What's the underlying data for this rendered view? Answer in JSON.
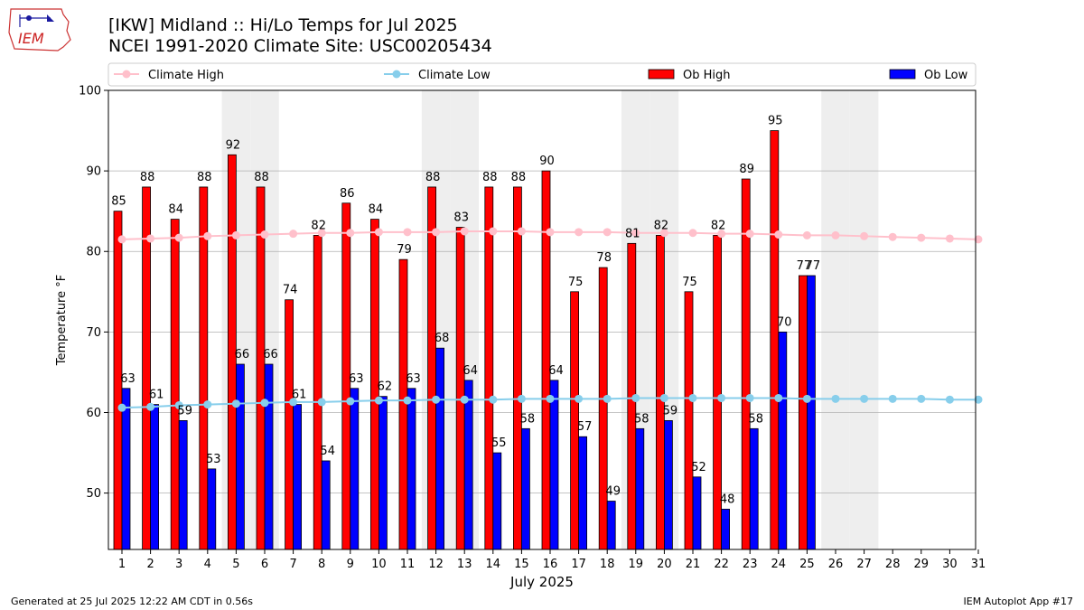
{
  "header": {
    "title_line1": "[IKW] Midland :: Hi/Lo Temps for Jul 2025",
    "title_line2": "NCEI 1991-2020 Climate Site: USC00205434",
    "logo_text": "IEM"
  },
  "footer": {
    "generated": "Generated at 25 Jul 2025 12:22 AM CDT in 0.56s",
    "app": "IEM Autoplot App #17"
  },
  "colors": {
    "climate_high": "#ffc0cb",
    "climate_low": "#87ceeb",
    "ob_high": "#ff0000",
    "ob_low": "#0000ff",
    "weekend_shade": "#eeeeee",
    "grid": "#b0b0b0"
  },
  "chart_data": {
    "type": "bar",
    "xlabel": "July 2025",
    "ylabel": "Temperature °F",
    "ylim": [
      43,
      100
    ],
    "yticks": [
      50,
      60,
      70,
      80,
      90,
      100
    ],
    "grid": "horizontal",
    "legend_placement": "top",
    "days": [
      1,
      2,
      3,
      4,
      5,
      6,
      7,
      8,
      9,
      10,
      11,
      12,
      13,
      14,
      15,
      16,
      17,
      18,
      19,
      20,
      21,
      22,
      23,
      24,
      25,
      26,
      27,
      28,
      29,
      30,
      31
    ],
    "weekend_days": [
      5,
      6,
      12,
      13,
      19,
      20,
      26,
      27
    ],
    "series": [
      {
        "name": "Ob High",
        "kind": "bar",
        "values": [
          85,
          88,
          84,
          88,
          92,
          88,
          74,
          82,
          86,
          84,
          79,
          88,
          83,
          88,
          88,
          90,
          75,
          78,
          81,
          82,
          75,
          82,
          89,
          95,
          77
        ],
        "labels": [
          "85",
          "88",
          "84",
          "88",
          "92",
          "88",
          "74",
          "82",
          "86",
          "84",
          "79",
          "88",
          "83",
          "88",
          "88",
          "90",
          "75",
          "78",
          "81",
          "82",
          "75",
          "82",
          "89",
          "95",
          "77"
        ]
      },
      {
        "name": "Ob Low",
        "kind": "bar",
        "values": [
          63,
          61,
          59,
          53,
          66,
          66,
          61,
          54,
          63,
          62,
          63,
          68,
          64,
          55,
          58,
          64,
          57,
          49,
          58,
          59,
          52,
          48,
          58,
          70,
          77
        ],
        "labels": [
          "63",
          "61",
          "59",
          "53",
          "66",
          "66",
          "61",
          "54",
          "63",
          "62",
          "63",
          "68",
          "64",
          "55",
          "58",
          "64",
          "57",
          "49",
          "58",
          "59",
          "52",
          "48",
          "58",
          "70",
          "77"
        ]
      },
      {
        "name": "Climate High",
        "kind": "line",
        "values": [
          81.5,
          81.6,
          81.7,
          81.9,
          82.0,
          82.1,
          82.2,
          82.3,
          82.3,
          82.4,
          82.4,
          82.4,
          82.5,
          82.5,
          82.5,
          82.4,
          82.4,
          82.4,
          82.3,
          82.3,
          82.3,
          82.2,
          82.2,
          82.1,
          82.0,
          82.0,
          81.9,
          81.8,
          81.7,
          81.6,
          81.5
        ]
      },
      {
        "name": "Climate Low",
        "kind": "line",
        "values": [
          60.6,
          60.7,
          60.9,
          61.0,
          61.1,
          61.2,
          61.3,
          61.3,
          61.4,
          61.5,
          61.5,
          61.6,
          61.6,
          61.6,
          61.7,
          61.7,
          61.7,
          61.7,
          61.8,
          61.8,
          61.8,
          61.8,
          61.8,
          61.8,
          61.7,
          61.7,
          61.7,
          61.7,
          61.7,
          61.6,
          61.6
        ]
      }
    ],
    "legend": [
      "Climate High",
      "Climate Low",
      "Ob High",
      "Ob Low"
    ]
  }
}
